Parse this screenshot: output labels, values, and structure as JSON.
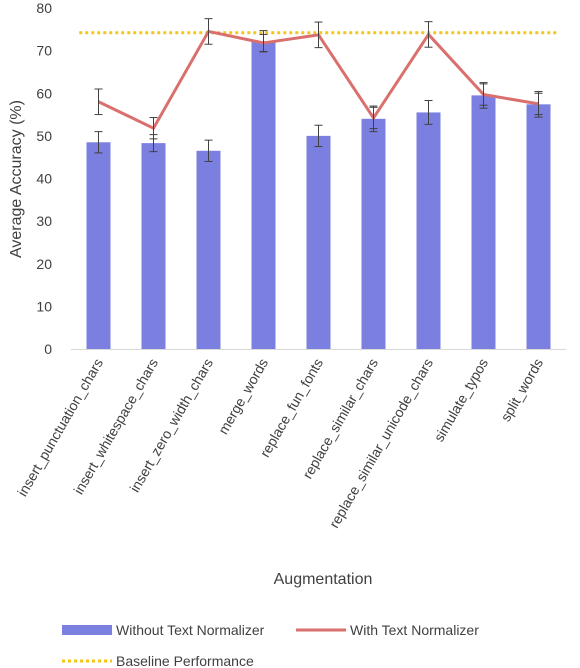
{
  "chart_data": {
    "type": "bar",
    "title": "",
    "xlabel": "Augmentation",
    "ylabel": "Average Accuracy (%)",
    "ylim": [
      0,
      80
    ],
    "yticks": [
      0,
      10,
      20,
      30,
      40,
      50,
      60,
      70,
      80
    ],
    "grid": false,
    "legend_position": "bottom",
    "categories": [
      "insert_punctuation_chars",
      "insert_whitespace_chars",
      "insert_zero_width_chars",
      "merge_words",
      "replace_fun_fonts",
      "replace_similar_chars",
      "replace_similar_unicode_chars",
      "simulate_typos",
      "split_words"
    ],
    "series": [
      {
        "name": "Without Text Normalizer",
        "type": "bar",
        "color": "#7b7fe0",
        "values": [
          48.5,
          48.3,
          46.5,
          72.2,
          50.0,
          54.0,
          55.5,
          59.5,
          57.4
        ],
        "errors": [
          2.5,
          2.0,
          2.5,
          2.5,
          2.5,
          3.0,
          2.8,
          3.0,
          3.0
        ]
      },
      {
        "name": "With Text Normalizer",
        "type": "line",
        "color": "#d9706e",
        "values": [
          58.0,
          51.8,
          74.5,
          71.8,
          73.7,
          54.2,
          73.8,
          59.7,
          57.5
        ],
        "errors": [
          3.0,
          2.5,
          3.0,
          2.0,
          3.0,
          2.5,
          3.0,
          2.5,
          2.5
        ]
      },
      {
        "name": "Baseline Performance",
        "type": "line",
        "style": "dotted",
        "color": "#f5c518",
        "values": [
          74.2,
          74.2,
          74.2,
          74.2,
          74.2,
          74.2,
          74.2,
          74.2,
          74.2
        ]
      }
    ]
  }
}
